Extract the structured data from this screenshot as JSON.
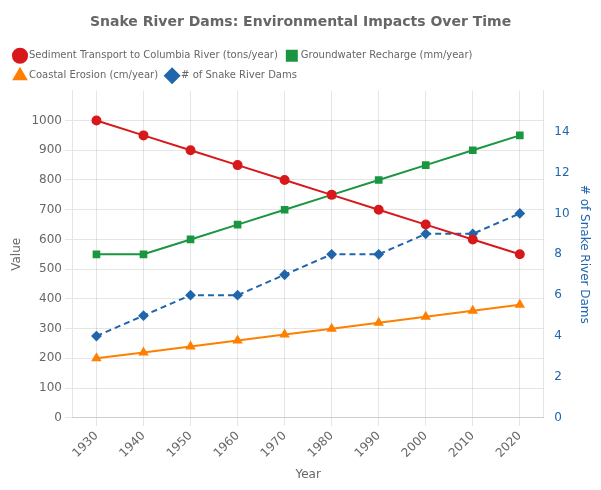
{
  "chart_data": {
    "type": "line",
    "title": "Snake River Dams: Environmental Impacts Over Time",
    "xlabel": "Year",
    "ylabel": "Value",
    "y2label": "# of Snake River Dams",
    "x": [
      1930,
      1940,
      1950,
      1960,
      1970,
      1980,
      1990,
      2000,
      2010,
      2020
    ],
    "xlim": [
      1925,
      2025
    ],
    "xticks": [
      1930,
      1940,
      1950,
      1960,
      1970,
      1980,
      1990,
      2000,
      2010,
      2020
    ],
    "ylim": [
      0,
      1100
    ],
    "yticks": [
      0,
      100,
      200,
      300,
      400,
      500,
      600,
      700,
      800,
      900,
      1000
    ],
    "y2lim": [
      0,
      16
    ],
    "y2ticks": [
      0,
      2,
      4,
      6,
      8,
      10,
      12,
      14
    ],
    "grid": true,
    "legend": "upper left",
    "series": [
      {
        "name": "Sediment Transport to Columbia River (tons/year)",
        "color": "#d7191c",
        "marker": "circle",
        "line_style": "solid",
        "values": [
          1000,
          950,
          900,
          850,
          800,
          750,
          700,
          650,
          600,
          550
        ]
      },
      {
        "name": "Groundwater Recharge (mm/year)",
        "color": "#1a9641",
        "marker": "square",
        "line_style": "solid",
        "values": [
          550,
          550,
          600,
          650,
          700,
          750,
          800,
          850,
          900,
          950
        ]
      },
      {
        "name": "Coastal Erosion (cm/year)",
        "color": "#ff7f00",
        "marker": "triangle",
        "line_style": "solid",
        "values": [
          200,
          220,
          240,
          260,
          280,
          300,
          320,
          340,
          360,
          380
        ]
      },
      {
        "name": "# of Snake River Dams",
        "color": "#2166ac",
        "marker": "diamond",
        "line_style": "dashed",
        "axis": "y2",
        "values": [
          4,
          5,
          6,
          6,
          7,
          8,
          8,
          9,
          9,
          10
        ]
      }
    ]
  }
}
